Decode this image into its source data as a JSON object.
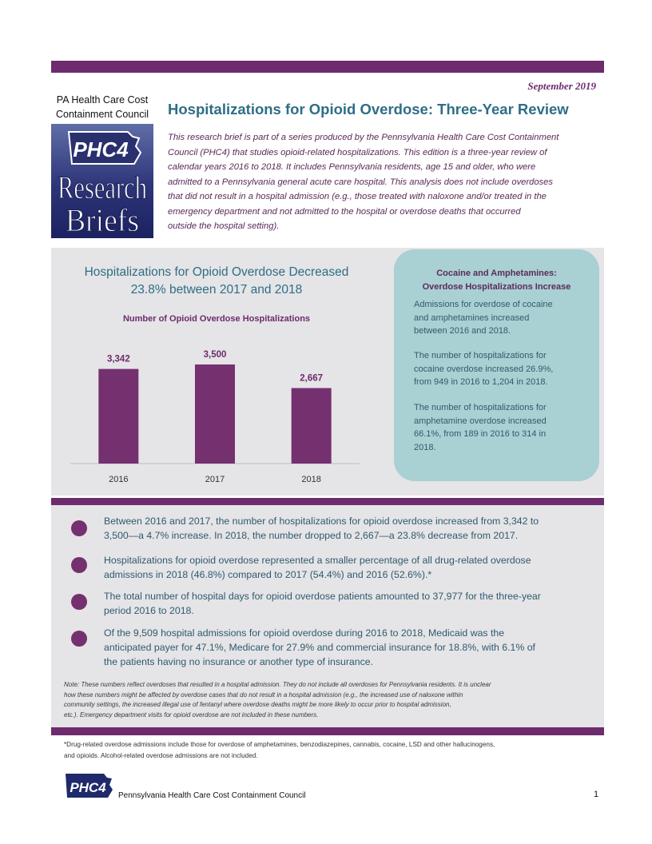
{
  "header": {
    "date": "September 2019",
    "org_line1": "PA Health Care Cost",
    "org_line2": "Containment Council",
    "logo_text": "PHC4",
    "brand_line1": "Research",
    "brand_line2": "Briefs",
    "title": "Hospitalizations for Opioid Overdose: Three-Year Review",
    "intro_lines": [
      "This research brief is part of a series produced by the Pennsylvania Health Care Cost Containment",
      "Council (PHC4) that studies opioid-related hospitalizations. This edition is a three-year review of",
      "calendar years 2016 to 2018. It includes Pennsylvania residents, age 15 and older, who were",
      "admitted to a Pennsylvania general acute care hospital. This analysis does not include overdoses",
      "that did not result in a hospital admission (e.g., those treated with naloxone and/or treated in the",
      "emergency department and not admitted to the hospital or overdose deaths that occurred",
      "outside the hospital setting)."
    ]
  },
  "chart_heading": {
    "line1": "Hospitalizations for Opioid Overdose Decreased",
    "line2": "23.8% between 2017 and 2018"
  },
  "chart_data": {
    "type": "bar",
    "title": "Number of Opioid Overdose Hospitalizations",
    "categories": [
      "2016",
      "2017",
      "2018"
    ],
    "values": [
      3342,
      3500,
      2667
    ],
    "value_labels": [
      "3,342",
      "3,500",
      "2,667"
    ],
    "color": "#75306f",
    "ylim": [
      0,
      4800
    ]
  },
  "sidebar": {
    "heading_line1": "Cocaine and Amphetamines:",
    "heading_line2": "Overdose Hospitalizations Increase",
    "para1": [
      "Admissions for overdose of cocaine",
      "and amphetamines increased",
      "between 2016 and 2018."
    ],
    "para2": [
      "The number of hospitalizations for",
      "cocaine overdose increased 26.9%,",
      "from 949 in 2016 to 1,204 in 2018."
    ],
    "para3": [
      "The number of hospitalizations for",
      "amphetamine overdose increased",
      "66.1%, from 189 in 2016 to 314 in",
      "2018."
    ]
  },
  "bullets": [
    [
      "Between 2016 and 2017, the number of hospitalizations for opioid overdose increased from 3,342 to",
      "3,500—a 4.7% increase. In 2018, the number dropped to 2,667—a 23.8% decrease from 2017."
    ],
    [
      "Hospitalizations for opioid overdose represented a smaller percentage of all drug-related overdose",
      "admissions in 2018 (46.8%) compared to 2017 (54.4%) and 2016 (52.6%).*"
    ],
    [
      "The total number of hospital days for opioid overdose patients amounted to 37,977 for the three-year",
      "period 2016 to 2018."
    ],
    [
      "Of the 9,509 hospital admissions for opioid overdose during 2016 to 2018, Medicaid was the",
      "anticipated payer for 47.1%, Medicare for 27.9% and commercial insurance for 18.8%, with 6.1% of",
      "the patients having no insurance or another type of insurance."
    ]
  ],
  "note_lines": [
    "Note: These numbers reflect overdoses that resulted in a hospital admission. They do not include all overdoses for Pennsylvania residents. It is unclear",
    "how these numbers might be affected by overdose cases that do not result in a hospital admission (e.g., the increased use of naloxone within",
    "community settings, the increased illegal use of fentanyl where overdose deaths might be more likely to occur prior to hospital admission,",
    "etc.). Emergency department visits for opioid overdose are not included in these numbers."
  ],
  "footnote_lines": [
    "*Drug-related overdose admissions include those for overdose of amphetamines, benzodiazepines, cannabis, cocaine, LSD and other hallucinogens,",
    "and opioids. Alcohol-related overdose admissions are not included."
  ],
  "footer": {
    "logo_text": "PHC4",
    "org_name": "Pennsylvania Health Care Cost Containment Council",
    "page_number": "1"
  }
}
